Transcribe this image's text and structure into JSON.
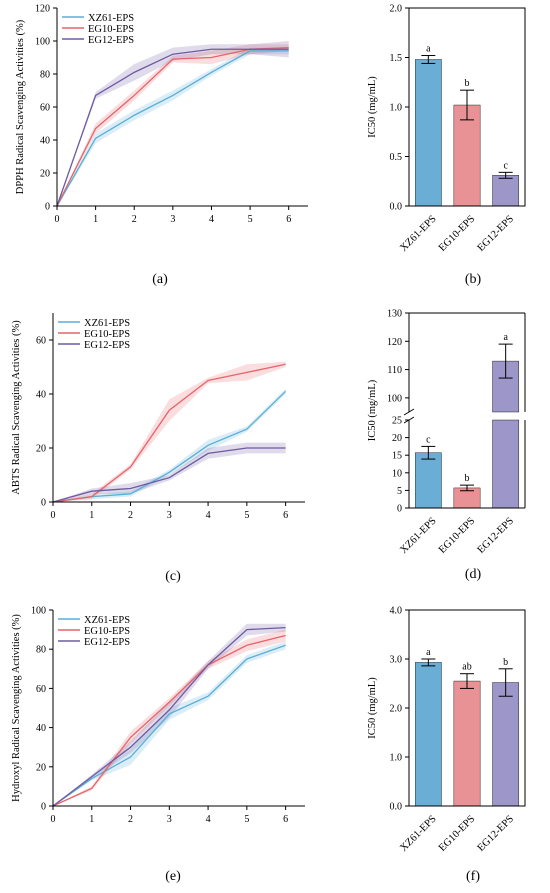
{
  "colors": {
    "xz61": "#5aaed6",
    "eg10": "#e6646a",
    "eg12": "#6e5aa2",
    "bar_xz61": "#6aaed6",
    "bar_eg10": "#e99295",
    "bar_eg12": "#9d97c9"
  },
  "chart_data": [
    {
      "id": "a",
      "type": "line",
      "panel_label": "(a)",
      "ylabel": "DPPH Radical Scavenging Activities (%)",
      "xlim": [
        0,
        6.5
      ],
      "ylim": [
        0,
        120
      ],
      "xticks": [
        0,
        1,
        2,
        3,
        4,
        5,
        6
      ],
      "yticks": [
        0,
        20,
        40,
        60,
        80,
        100,
        120
      ],
      "legend": "top-left",
      "series": [
        {
          "name": "XZ61-EPS",
          "color": "#5aaed6",
          "x": [
            0,
            1,
            2,
            3,
            4,
            5,
            6
          ],
          "values": [
            0,
            41,
            55,
            67,
            81,
            94,
            94
          ],
          "err": [
            0,
            3,
            3,
            3,
            2,
            2,
            2
          ]
        },
        {
          "name": "EG10-EPS",
          "color": "#e6646a",
          "x": [
            0,
            1,
            2,
            3,
            4,
            5,
            6
          ],
          "values": [
            0,
            47,
            67,
            89,
            90,
            95,
            96
          ],
          "err": [
            0,
            3,
            3,
            2,
            4,
            3,
            2
          ]
        },
        {
          "name": "EG12-EPS",
          "color": "#6e5aa2",
          "x": [
            0,
            1,
            2,
            3,
            4,
            5,
            6
          ],
          "values": [
            0,
            67,
            81,
            92,
            95,
            95,
            95
          ],
          "err": [
            0,
            2,
            5,
            4,
            3,
            3,
            5
          ]
        }
      ]
    },
    {
      "id": "b",
      "type": "bar",
      "panel_label": "(b)",
      "ylabel": "IC50 (mg/mL)",
      "ylim": [
        0,
        2.0
      ],
      "yticks": [
        0.0,
        0.5,
        1.0,
        1.5,
        2.0
      ],
      "ytick_labels": [
        "0.0",
        "0.5",
        "1.0",
        "1.5",
        "2.0"
      ],
      "categories": [
        "XZ61-EPS",
        "EG10-EPS",
        "EG12-EPS"
      ],
      "values": [
        1.48,
        1.02,
        0.31
      ],
      "err": [
        0.04,
        0.15,
        0.03
      ],
      "letters": [
        "a",
        "b",
        "c"
      ],
      "bar_colors": [
        "#6aaed6",
        "#e99295",
        "#9d97c9"
      ]
    },
    {
      "id": "c",
      "type": "line",
      "panel_label": "(c)",
      "ylabel": "ABTS Radical Scavenging Activities (%)",
      "xlim": [
        0,
        6.5
      ],
      "ylim": [
        0,
        70
      ],
      "xticks": [
        0,
        1,
        2,
        3,
        4,
        5,
        6
      ],
      "yticks": [
        0,
        20,
        40,
        60
      ],
      "legend": "top-left",
      "series": [
        {
          "name": "XZ61-EPS",
          "color": "#5aaed6",
          "x": [
            0,
            1,
            2,
            3,
            4,
            5,
            6
          ],
          "values": [
            0,
            2,
            3,
            11,
            21,
            27,
            41
          ],
          "err": [
            0,
            1,
            1,
            1,
            2,
            1,
            1
          ]
        },
        {
          "name": "EG10-EPS",
          "color": "#e6646a",
          "x": [
            0,
            1,
            2,
            3,
            4,
            5,
            6
          ],
          "values": [
            0,
            2,
            13,
            34,
            45,
            48,
            51
          ],
          "err": [
            0,
            1,
            1,
            4,
            1,
            3,
            1
          ]
        },
        {
          "name": "EG12-EPS",
          "color": "#6e5aa2",
          "x": [
            0,
            1,
            2,
            3,
            4,
            5,
            6
          ],
          "values": [
            0,
            4,
            5,
            9,
            18,
            20,
            20
          ],
          "err": [
            0,
            1,
            2,
            1,
            2,
            2,
            2
          ]
        }
      ]
    },
    {
      "id": "d",
      "type": "bar",
      "panel_label": "(d)",
      "ylabel": "IC50 (mg/mL)",
      "broken_axis": {
        "lower": [
          0,
          25
        ],
        "upper": [
          95,
          130
        ]
      },
      "yticks_lower": [
        0,
        5,
        10,
        15,
        20,
        25
      ],
      "yticks_upper": [
        100,
        110,
        120,
        130
      ],
      "categories": [
        "XZ61-EPS",
        "EG10-EPS",
        "EG12-EPS"
      ],
      "values": [
        15.7,
        5.7,
        113.0
      ],
      "err": [
        1.8,
        0.8,
        6.0
      ],
      "letters": [
        "c",
        "b",
        "a"
      ],
      "bar_colors": [
        "#6aaed6",
        "#e99295",
        "#9d97c9"
      ]
    },
    {
      "id": "e",
      "type": "line",
      "panel_label": "(e)",
      "ylabel": "Hydroxyl Radical Scavenging Activities (%)",
      "xlim": [
        0,
        6.5
      ],
      "ylim": [
        0,
        100
      ],
      "xticks": [
        0,
        1,
        2,
        3,
        4,
        5,
        6
      ],
      "yticks": [
        0,
        20,
        40,
        60,
        80,
        100
      ],
      "legend": "top-left",
      "series": [
        {
          "name": "XZ61-EPS",
          "color": "#5aaed6",
          "x": [
            0,
            1,
            2,
            3,
            4,
            5,
            6
          ],
          "values": [
            0,
            14,
            25,
            47,
            56,
            75,
            82
          ],
          "err": [
            0,
            1,
            4,
            3,
            2,
            2,
            2
          ]
        },
        {
          "name": "EG10-EPS",
          "color": "#e6646a",
          "x": [
            0,
            1,
            2,
            3,
            4,
            5,
            6
          ],
          "values": [
            0,
            9,
            35,
            53,
            72,
            82,
            87
          ],
          "err": [
            0,
            1,
            3,
            2,
            2,
            3,
            3
          ]
        },
        {
          "name": "EG12-EPS",
          "color": "#6e5aa2",
          "x": [
            0,
            1,
            2,
            3,
            4,
            5,
            6
          ],
          "values": [
            0,
            15,
            30,
            49,
            72,
            90,
            91
          ],
          "err": [
            0,
            1,
            3,
            4,
            2,
            3,
            2
          ]
        }
      ]
    },
    {
      "id": "f",
      "type": "bar",
      "panel_label": "(f)",
      "ylabel": "IC50 (mg/mL)",
      "ylim": [
        0,
        4.0
      ],
      "yticks": [
        0.0,
        1.0,
        2.0,
        3.0,
        4.0
      ],
      "ytick_labels": [
        "0.0",
        "1.0",
        "2.0",
        "3.0",
        "4.0"
      ],
      "categories": [
        "XZ61-EPS",
        "EG10-EPS",
        "EG12-EPS"
      ],
      "values": [
        2.93,
        2.55,
        2.52
      ],
      "err": [
        0.07,
        0.15,
        0.28
      ],
      "letters": [
        "a",
        "ab",
        "b"
      ],
      "bar_colors": [
        "#6aaed6",
        "#e99295",
        "#9d97c9"
      ]
    }
  ]
}
